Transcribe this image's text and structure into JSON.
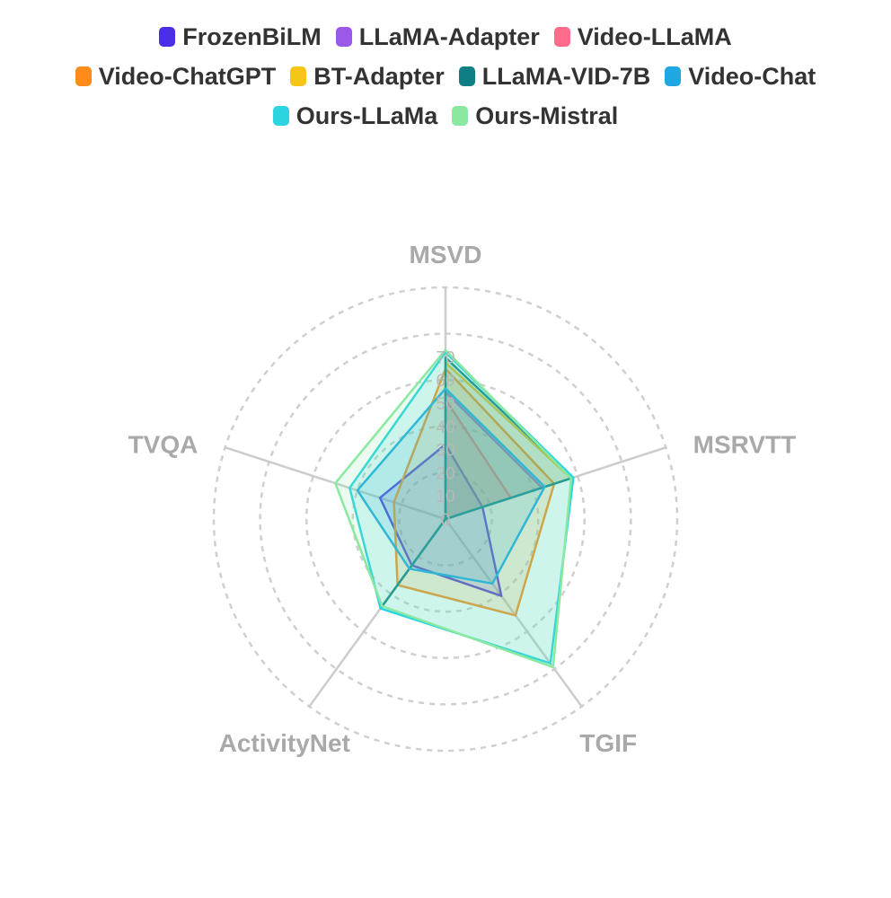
{
  "chart_data": {
    "type": "radar",
    "indicators": [
      "MSVD",
      "MSRVTT",
      "TGIF",
      "ActivityNet",
      "TVQA"
    ],
    "max": 100,
    "ticks": [
      0,
      10,
      20,
      30,
      40,
      50,
      60,
      70
    ],
    "grid": "dashed circles",
    "legend_position": "top-center",
    "series": [
      {
        "name": "FrozenBiLM",
        "color": "#4a2de6",
        "values": [
          32.2,
          16.8,
          41.0,
          24.7,
          29.7
        ]
      },
      {
        "name": "LLaMA-Adapter",
        "color": "#9b59e8",
        "values": [
          54.9,
          43.8,
          0,
          34.2,
          0
        ]
      },
      {
        "name": "Video-LLaMA",
        "color": "#ff6b8a",
        "values": [
          51.6,
          29.6,
          0,
          12.4,
          0
        ]
      },
      {
        "name": "Video-ChatGPT",
        "color": "#ff8c1a",
        "values": [
          64.9,
          49.3,
          51.4,
          35.2,
          23.4
        ]
      },
      {
        "name": "BT-Adapter",
        "color": "#f5c518",
        "values": [
          67.5,
          57.0,
          0,
          45.7,
          0
        ]
      },
      {
        "name": "LLaMA-VID-7B",
        "color": "#0f7f86",
        "values": [
          69.7,
          57.7,
          0,
          47.4,
          0
        ]
      },
      {
        "name": "Video-Chat",
        "color": "#1ea7e1",
        "values": [
          56.3,
          45.0,
          34.4,
          26.5,
          40.0
        ]
      },
      {
        "name": "Ours-LLaMa",
        "color": "#2ad4e0",
        "values": [
          72.0,
          58.0,
          77.0,
          47.7,
          43.5
        ]
      },
      {
        "name": "Ours-Mistral",
        "color": "#8ae8a0",
        "values": [
          73.0,
          57.0,
          79.0,
          46.5,
          50.0
        ]
      }
    ]
  },
  "legend_rows": [
    [
      "FrozenBiLM",
      "LLaMA-Adapter",
      "Video-LLaMA"
    ],
    [
      "Video-ChatGPT",
      "BT-Adapter",
      "LLaMA-VID-7B",
      "Video-Chat"
    ],
    [
      "Ours-LLaMa",
      "Ours-Mistral"
    ]
  ]
}
